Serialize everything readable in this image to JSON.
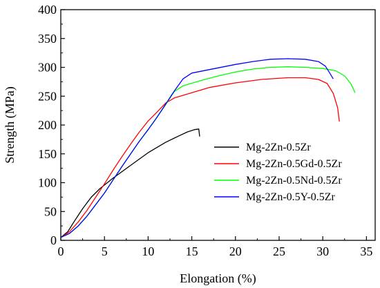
{
  "chart_data": {
    "type": "line",
    "xlabel": "Elongation (%)",
    "ylabel": "Strength (MPa)",
    "xlim": [
      0,
      36
    ],
    "ylim": [
      0,
      400
    ],
    "x_ticks": [
      0,
      5,
      10,
      15,
      20,
      25,
      30,
      35
    ],
    "y_ticks": [
      0,
      50,
      100,
      150,
      200,
      250,
      300,
      350,
      400
    ],
    "grid": false,
    "legend_position": "center-right",
    "series": [
      {
        "name": "Mg-2Zn-0.5Zr",
        "color": "#000000",
        "points": [
          [
            0,
            5
          ],
          [
            0.8,
            15
          ],
          [
            1.5,
            32
          ],
          [
            2.5,
            55
          ],
          [
            3.5,
            75
          ],
          [
            4.5,
            90
          ],
          [
            6,
            108
          ],
          [
            8,
            130
          ],
          [
            10,
            152
          ],
          [
            12,
            170
          ],
          [
            13.5,
            181
          ],
          [
            14.5,
            188
          ],
          [
            15.3,
            192
          ],
          [
            15.8,
            193
          ],
          [
            15.9,
            180
          ]
        ]
      },
      {
        "name": "Mg-2Zn-0.5Gd-0.5Zr",
        "color": "#ff0000",
        "points": [
          [
            0,
            5
          ],
          [
            1,
            15
          ],
          [
            2,
            32
          ],
          [
            3,
            52
          ],
          [
            4,
            75
          ],
          [
            5,
            98
          ],
          [
            6,
            122
          ],
          [
            7,
            145
          ],
          [
            8,
            167
          ],
          [
            9,
            188
          ],
          [
            10,
            207
          ],
          [
            11,
            222
          ],
          [
            12,
            238
          ],
          [
            13,
            247
          ],
          [
            15,
            256
          ],
          [
            17,
            265
          ],
          [
            20,
            273
          ],
          [
            23,
            279
          ],
          [
            26,
            282
          ],
          [
            28,
            282
          ],
          [
            29.5,
            279
          ],
          [
            30.5,
            272
          ],
          [
            31.2,
            255
          ],
          [
            31.7,
            230
          ],
          [
            31.9,
            206
          ]
        ]
      },
      {
        "name": "Mg-2Zn-0.5Nd-0.5Zr",
        "color": "#00ff00",
        "points": [
          [
            0,
            5
          ],
          [
            1,
            12
          ],
          [
            2,
            25
          ],
          [
            3,
            42
          ],
          [
            4,
            62
          ],
          [
            5,
            82
          ],
          [
            6,
            105
          ],
          [
            7,
            128
          ],
          [
            8,
            150
          ],
          [
            9,
            172
          ],
          [
            10,
            192
          ],
          [
            11,
            213
          ],
          [
            12,
            235
          ],
          [
            13,
            258
          ],
          [
            14,
            268
          ],
          [
            16,
            277
          ],
          [
            18,
            285
          ],
          [
            20,
            292
          ],
          [
            22,
            297
          ],
          [
            24,
            300
          ],
          [
            26,
            301
          ],
          [
            28,
            300
          ],
          [
            30,
            298
          ],
          [
            31.5,
            294
          ],
          [
            32.5,
            285
          ],
          [
            33.2,
            272
          ],
          [
            33.7,
            256
          ]
        ]
      },
      {
        "name": "Mg-2Zn-0.5Y-0.5Zr",
        "color": "#0000ff",
        "points": [
          [
            0,
            5
          ],
          [
            1,
            12
          ],
          [
            2,
            25
          ],
          [
            3,
            42
          ],
          [
            4,
            62
          ],
          [
            5,
            82
          ],
          [
            6,
            105
          ],
          [
            7,
            128
          ],
          [
            8,
            150
          ],
          [
            9,
            172
          ],
          [
            10,
            192
          ],
          [
            11,
            213
          ],
          [
            12,
            236
          ],
          [
            13,
            259
          ],
          [
            14,
            280
          ],
          [
            15,
            290
          ],
          [
            16,
            293
          ],
          [
            18,
            299
          ],
          [
            20,
            305
          ],
          [
            22,
            310
          ],
          [
            24,
            314
          ],
          [
            26,
            315
          ],
          [
            28,
            314
          ],
          [
            29.5,
            310
          ],
          [
            30.3,
            302
          ],
          [
            30.8,
            290
          ],
          [
            31.2,
            280
          ]
        ]
      }
    ]
  }
}
